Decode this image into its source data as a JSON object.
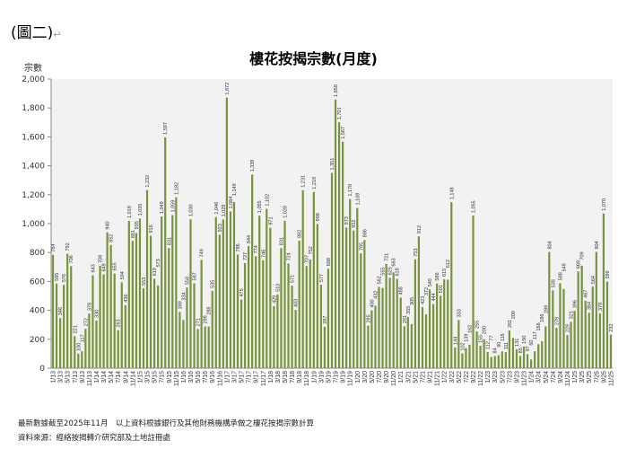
{
  "figure_label": "(圖二)",
  "footnotes": [
    "最新數據截至2025年11月　以上資料根據銀行及其他財務機構承做之樓花按揭宗數計算",
    "資料來源：經絡按揭轉介研究部及土地註冊處"
  ],
  "chart_data": {
    "type": "bar",
    "title": "樓花按揭宗數(月度)",
    "ylabel": "宗數",
    "xlabel": "",
    "ylim": [
      0,
      2000
    ],
    "yticks": [
      "0",
      "200",
      "400",
      "600",
      "800",
      "1,000",
      "1,200",
      "1,400",
      "1,600",
      "1,800",
      "2,000"
    ],
    "grid": false,
    "color": "#77933c",
    "start": "1/13",
    "end": "11/25",
    "values": [
      784,
      585,
      346,
      576,
      792,
      706,
      221,
      100,
      117,
      272,
      378,
      643,
      330,
      708,
      649,
      940,
      852,
      655,
      263,
      594,
      436,
      1019,
      881,
      935,
      1035,
      553,
      1232,
      916,
      619,
      573,
      1049,
      1597,
      831,
      1059,
      1182,
      389,
      334,
      558,
      1030,
      587,
      271,
      749,
      289,
      288,
      535,
      1046,
      923,
      1029,
      1872,
      1084,
      1149,
      786,
      475,
      727,
      844,
      1339,
      774,
      1055,
      746,
      1102,
      971,
      429,
      510,
      831,
      1020,
      724,
      571,
      403,
      882,
      1231,
      707,
      752,
      1219,
      998,
      577,
      287,
      688,
      1351,
      1858,
      1701,
      1567,
      973,
      1170,
      952,
      1109,
      795,
      886,
      295,
      400,
      432,
      562,
      555,
      721,
      625,
      663,
      618,
      488,
      291,
      355,
      305,
      753,
      912,
      423,
      372,
      545,
      444,
      586,
      501,
      615,
      612,
      1148,
      144,
      333,
      102,
      139,
      162,
      1055,
      255,
      155,
      200,
      112,
      77,
      84,
      90,
      116,
      111,
      261,
      209,
      131,
      85,
      150,
      97,
      60,
      117,
      166,
      186,
      289,
      804,
      538,
      279,
      588,
      548,
      229,
      321,
      396,
      669,
      709,
      467,
      384,
      564,
      804,
      379,
      1070,
      599,
      232
    ]
  }
}
